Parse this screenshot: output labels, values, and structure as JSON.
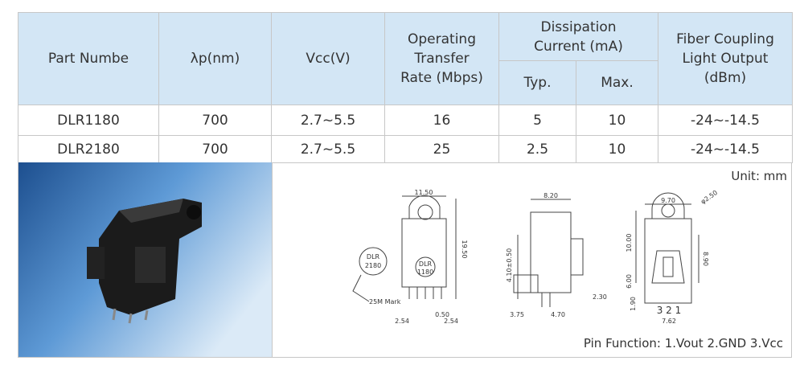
{
  "table": {
    "header": {
      "part_number": "Part Numbe",
      "wavelength": "λp(nm)",
      "vcc": "Vcc(V)",
      "rate": [
        "Operating",
        "Transfer",
        "Rate (Mbps)"
      ],
      "dissipation": [
        "Dissipation",
        "Current (mA)"
      ],
      "typ": "Typ.",
      "max": "Max.",
      "coupling": [
        "Fiber Coupling",
        "Light Output",
        "(dBm)"
      ]
    },
    "rows": [
      [
        "DLR1180",
        "700",
        "2.7~5.5",
        "16",
        "5",
        "10",
        "-24~-14.5"
      ],
      [
        "DLR2180",
        "700",
        "2.7~5.5",
        "25",
        "2.5",
        "10",
        "-24~-14.5"
      ]
    ]
  },
  "drawing": {
    "unit": "Unit: mm",
    "labels": {
      "w1": "11.50",
      "h1": "19.50",
      "mark_a": "DLR",
      "mark_b": "2180",
      "mark_c": "DLR",
      "mark_d": "1180",
      "mark_note": "25M Mark",
      "p1": "2.54",
      "p2": "0.50",
      "p3": "2.54",
      "w2": "8.20",
      "h2": "4.10±0.50",
      "d2": "2.30",
      "b1": "3.75",
      "b2": "4.70",
      "w3": "9.70",
      "hole": "φ2.50",
      "h3": "10.00",
      "h4": "8.90",
      "h5": "6.00",
      "h6": "1.90",
      "pins": "3 2 1",
      "b3": "7.62"
    },
    "pin_function": "Pin Function: 1.Vout  2.GND  3.Vcc"
  }
}
